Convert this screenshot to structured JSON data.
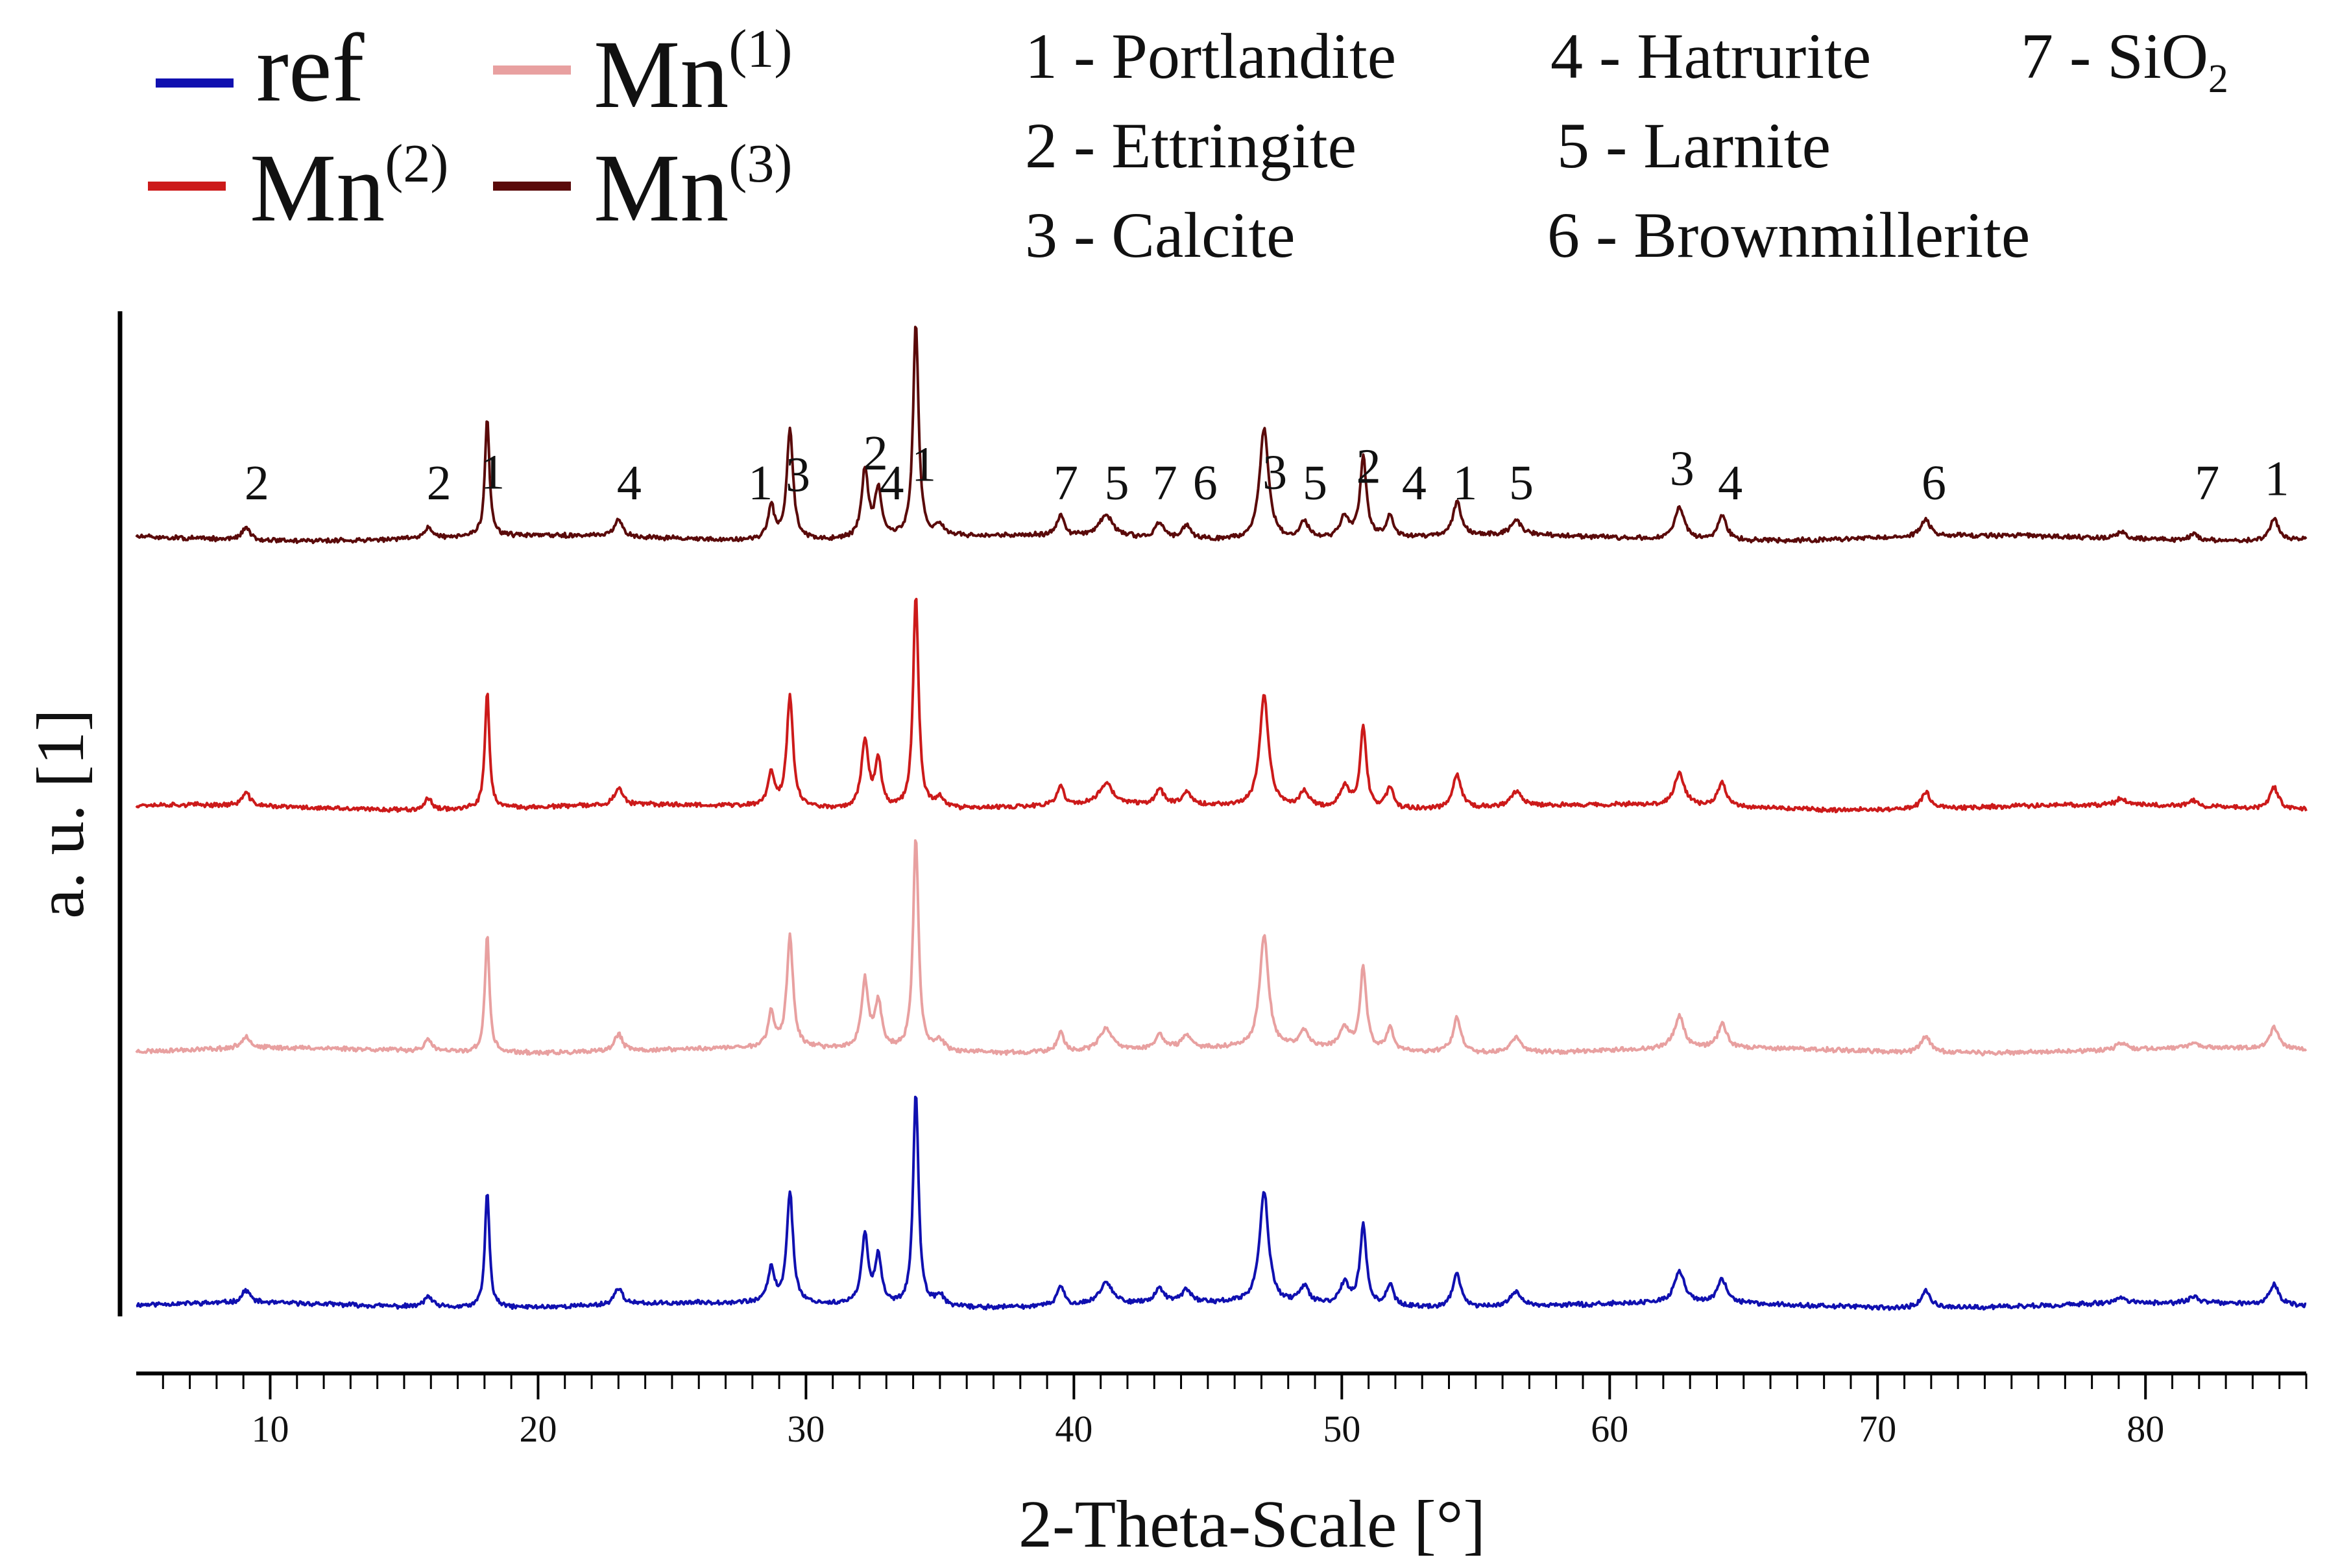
{
  "chart_data": {
    "type": "line",
    "title": "",
    "xlabel": "2-Theta-Scale [°]",
    "ylabel": "a. u. [1]",
    "xlim": [
      5,
      86
    ],
    "x_ticks": [
      10,
      20,
      30,
      40,
      50,
      60,
      70,
      80
    ],
    "x_tick_labels": [
      "10",
      "20",
      "30",
      "40",
      "50",
      "60",
      "70",
      "80"
    ],
    "grid": false,
    "legend_position": "top-left",
    "legend": [
      {
        "base": "ref",
        "sup": "",
        "color": "#1010b0"
      },
      {
        "base": "Mn",
        "sup": "(1)",
        "color": "#e8a0a0"
      },
      {
        "base": "Mn",
        "sup": "(2)",
        "color": "#cc1a1a"
      },
      {
        "base": "Mn",
        "sup": "(3)",
        "color": "#5a0a0a"
      }
    ],
    "phase_legend": [
      {
        "number": "1",
        "label": "1 - Portlandite"
      },
      {
        "number": "2",
        "label": "2 - Ettringite"
      },
      {
        "number": "3",
        "label": "3 - Calcite"
      },
      {
        "number": "4",
        "label": "4 - Hatrurite"
      },
      {
        "number": "5",
        "label": "5 - Larnite"
      },
      {
        "number": "6",
        "label": "6 - Brownmillerite"
      },
      {
        "number": "7",
        "label": "7 - SiO",
        "sub": "2"
      }
    ],
    "peaks": [
      {
        "x": 9.1,
        "h": 0.06,
        "w": 0.18
      },
      {
        "x": 15.9,
        "h": 0.05,
        "w": 0.18
      },
      {
        "x": 18.1,
        "h": 0.55,
        "w": 0.1
      },
      {
        "x": 23.0,
        "h": 0.08,
        "w": 0.18
      },
      {
        "x": 28.7,
        "h": 0.16,
        "w": 0.14
      },
      {
        "x": 29.4,
        "h": 0.52,
        "w": 0.14
      },
      {
        "x": 32.2,
        "h": 0.32,
        "w": 0.15
      },
      {
        "x": 32.7,
        "h": 0.22,
        "w": 0.15
      },
      {
        "x": 34.1,
        "h": 1.0,
        "w": 0.12
      },
      {
        "x": 35.0,
        "h": 0.05,
        "w": 0.2
      },
      {
        "x": 39.5,
        "h": 0.09,
        "w": 0.16
      },
      {
        "x": 41.2,
        "h": 0.1,
        "w": 0.3
      },
      {
        "x": 43.2,
        "h": 0.07,
        "w": 0.18
      },
      {
        "x": 44.2,
        "h": 0.06,
        "w": 0.2
      },
      {
        "x": 47.1,
        "h": 0.52,
        "w": 0.2
      },
      {
        "x": 48.6,
        "h": 0.08,
        "w": 0.2
      },
      {
        "x": 50.1,
        "h": 0.1,
        "w": 0.22
      },
      {
        "x": 50.8,
        "h": 0.38,
        "w": 0.14
      },
      {
        "x": 51.8,
        "h": 0.1,
        "w": 0.16
      },
      {
        "x": 54.3,
        "h": 0.16,
        "w": 0.18
      },
      {
        "x": 56.5,
        "h": 0.07,
        "w": 0.25
      },
      {
        "x": 62.6,
        "h": 0.15,
        "w": 0.22
      },
      {
        "x": 64.2,
        "h": 0.11,
        "w": 0.2
      },
      {
        "x": 71.8,
        "h": 0.08,
        "w": 0.2
      },
      {
        "x": 79.1,
        "h": 0.03,
        "w": 0.2
      },
      {
        "x": 81.8,
        "h": 0.03,
        "w": 0.2
      },
      {
        "x": 84.8,
        "h": 0.1,
        "w": 0.2
      }
    ],
    "series": [
      {
        "name": "ref",
        "color": "#1010b0",
        "scale": 330,
        "seed": 11
      },
      {
        "name": "Mn(1)",
        "color": "#e8a0a0",
        "scale": 330,
        "seed": 23
      },
      {
        "name": "Mn(2)",
        "color": "#cc1a1a",
        "scale": 330,
        "seed": 37
      },
      {
        "name": "Mn(3)",
        "color": "#5a0a0a",
        "scale": 330,
        "seed": 51
      }
    ],
    "annotations": [
      {
        "label": "2",
        "x": 9.5
      },
      {
        "label": "2",
        "x": 16.3
      },
      {
        "label": "1",
        "x": 18.3
      },
      {
        "label": "4",
        "x": 23.4
      },
      {
        "label": "1",
        "x": 28.3
      },
      {
        "label": "3",
        "x": 29.7
      },
      {
        "label": "2",
        "x": 32.6
      },
      {
        "label": "4",
        "x": 33.2
      },
      {
        "label": "1",
        "x": 34.4
      },
      {
        "label": "7",
        "x": 39.7
      },
      {
        "label": "5",
        "x": 41.6
      },
      {
        "label": "7",
        "x": 43.4
      },
      {
        "label": "6",
        "x": 44.9
      },
      {
        "label": "3",
        "x": 47.5
      },
      {
        "label": "5",
        "x": 49.0
      },
      {
        "label": "2",
        "x": 51.0
      },
      {
        "label": "4",
        "x": 52.7
      },
      {
        "label": "1",
        "x": 54.6
      },
      {
        "label": "5",
        "x": 56.7
      },
      {
        "label": "3",
        "x": 62.7
      },
      {
        "label": "4",
        "x": 64.5
      },
      {
        "label": "6",
        "x": 72.1
      },
      {
        "label": "7",
        "x": 82.3
      },
      {
        "label": "1",
        "x": 84.9
      }
    ]
  }
}
